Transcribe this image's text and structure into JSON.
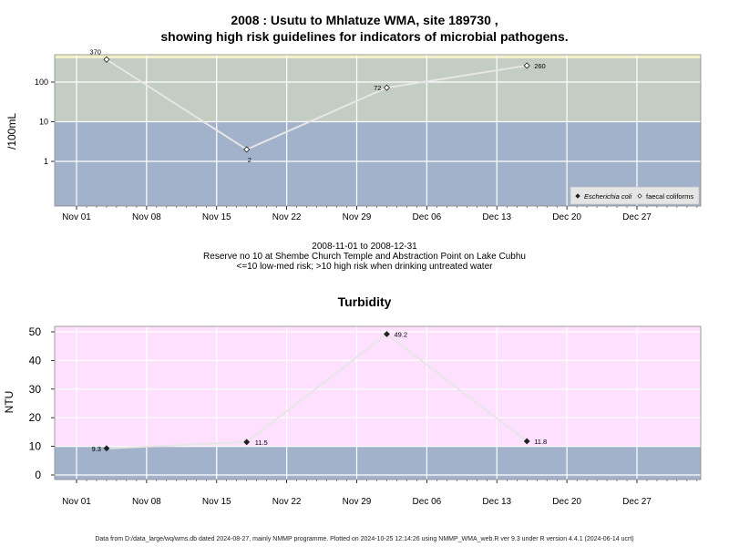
{
  "page": {
    "title_line1": "2008 : Usutu to Mhlatuze WMA, site 189730 ,",
    "title_line2": "showing high risk guidelines for indicators of microbial pathogens.",
    "caption_line1": "2008-11-01 to 2008-12-31",
    "caption_line2": "Reserve no 10 at Shembe Church Temple and Abstraction Point on Lake Cubhu",
    "caption_line3": "<=10 low-med risk; >10 high risk when drinking untreated water",
    "turbidity_title": "Turbidity",
    "footer": "Data from D:/data_large/wq/wms.db dated 2024-08-27, mainly NMMP programme. Plotted on 2024-10-25 12:14:26 using NMMP_WMA_web.R ver 9.3 under R version 4.4.1 (2024-06-14 ucrt)"
  },
  "colors": {
    "high_risk_band": "#c4cdc3",
    "low_risk_band": "#a2b2cb",
    "top_strip": "#f3f0cc",
    "turbidity_high_band": "#ffe0ff",
    "line": "#e6e6e6",
    "grid": "#ffffff"
  },
  "chart_data": [
    {
      "type": "line",
      "ylabel": "/100mL",
      "yscale": "log",
      "yticks": [
        1,
        10,
        100
      ],
      "ytick_labels": [
        "1",
        "10",
        "100"
      ],
      "threshold": 10,
      "x_ticks": [
        "Nov 01",
        "Nov 08",
        "Nov 15",
        "Nov 22",
        "Nov 29",
        "Dec 06",
        "Dec 13",
        "Dec 20",
        "Dec 27"
      ],
      "x_tick_dates": [
        "2008-11-01",
        "2008-11-08",
        "2008-11-15",
        "2008-11-22",
        "2008-11-29",
        "2008-12-06",
        "2008-12-13",
        "2008-12-20",
        "2008-12-27"
      ],
      "legend_position": "bottom-right",
      "legend": [
        {
          "label": "Escherichia coli",
          "marker": "filled-diamond"
        },
        {
          "label": "faecal coliforms",
          "marker": "open-diamond"
        }
      ],
      "series": [
        {
          "name": "faecal coliforms",
          "x": [
            "2008-11-04",
            "2008-11-18",
            "2008-12-02",
            "2008-12-16"
          ],
          "y": [
            370,
            2,
            72,
            260
          ],
          "labels": [
            "370",
            "2",
            "72",
            "260"
          ]
        }
      ]
    },
    {
      "type": "line",
      "title": "Turbidity",
      "ylabel": "NTU",
      "yscale": "linear",
      "yticks": [
        0,
        10,
        20,
        30,
        40,
        50
      ],
      "ytick_labels": [
        "0",
        "10",
        "20",
        "30",
        "40",
        "50"
      ],
      "threshold": 10,
      "x_ticks": [
        "Nov 01",
        "Nov 08",
        "Nov 15",
        "Nov 22",
        "Nov 29",
        "Dec 06",
        "Dec 13",
        "Dec 20",
        "Dec 27"
      ],
      "x_tick_dates": [
        "2008-11-01",
        "2008-11-08",
        "2008-11-15",
        "2008-11-22",
        "2008-11-29",
        "2008-12-06",
        "2008-12-13",
        "2008-12-20",
        "2008-12-27"
      ],
      "series": [
        {
          "name": "",
          "x": [
            "2008-11-04",
            "2008-11-18",
            "2008-12-02",
            "2008-12-16"
          ],
          "y": [
            9.3,
            11.5,
            49.2,
            11.8
          ],
          "labels": [
            "9.3",
            "11.5",
            "49.2",
            "11.8"
          ]
        }
      ]
    }
  ]
}
